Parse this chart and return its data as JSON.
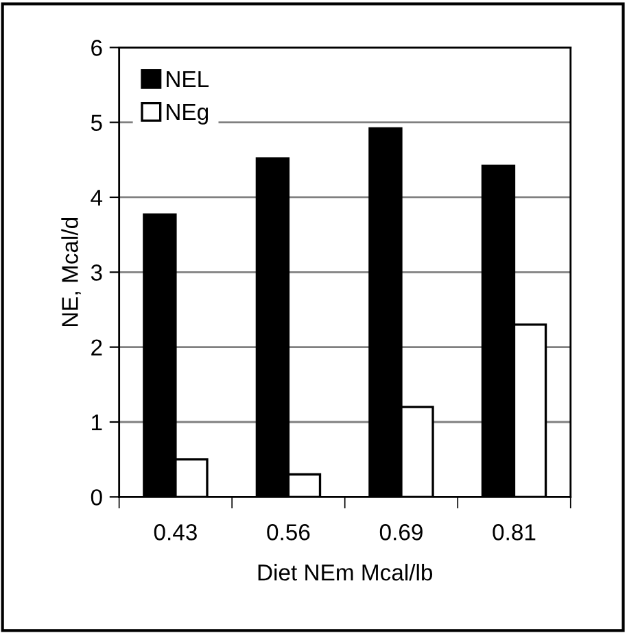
{
  "chart_data": {
    "type": "bar",
    "xlabel": "Diet NEm Mcal/lb",
    "ylabel": "NE, Mcal/d",
    "categories": [
      "0.43",
      "0.56",
      "0.69",
      "0.81"
    ],
    "series": [
      {
        "name": "NEL",
        "color": "#000000",
        "values": [
          3.77,
          4.52,
          4.92,
          4.42
        ]
      },
      {
        "name": "NEg",
        "color": "#ffffff",
        "values": [
          0.5,
          0.3,
          1.2,
          2.3
        ]
      }
    ],
    "ylim": [
      0,
      6
    ],
    "yticks": [
      0,
      1,
      2,
      3,
      4,
      5,
      6
    ],
    "grid": "y",
    "legend": "top left"
  }
}
